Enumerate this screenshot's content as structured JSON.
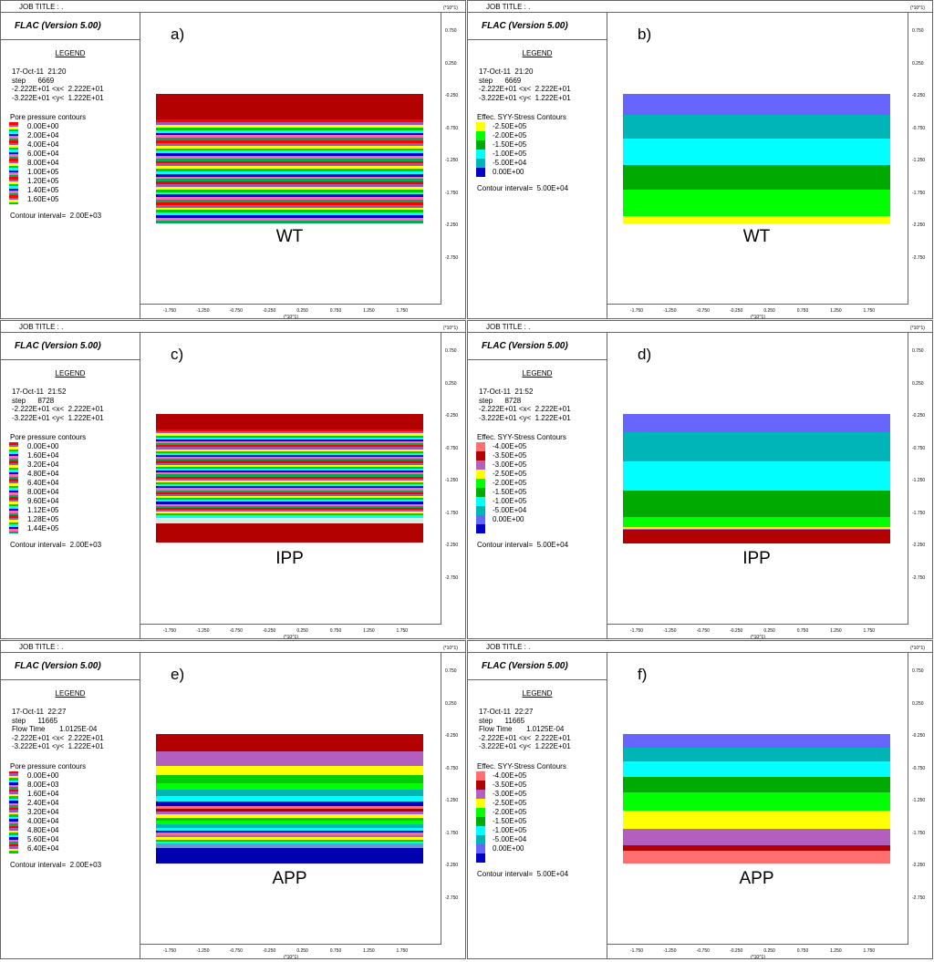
{
  "common": {
    "job_title": "JOB TITLE : .",
    "app_name": "FLAC (Version 5.00)",
    "legend_title": "LEGEND",
    "y_unit": "(*10^1)",
    "x_unit": "(*10^1)",
    "y_ticks": [
      "0.750",
      "0.250",
      "-0.250",
      "-0.750",
      "-1.250",
      "-1.750",
      "-2.250",
      "-2.750"
    ],
    "x_ticks": [
      "-1.750",
      "-1.250",
      "-0.750",
      "-0.250",
      "0.250",
      "0.750",
      "1.250",
      "1.750"
    ]
  },
  "panels": [
    {
      "id": "a",
      "label": "a)",
      "case": "WT",
      "date_time": "17-Oct-11  21:20",
      "step": "step      6669",
      "flow_time": "",
      "x_range": "-2.222E+01 <x<  2.222E+01",
      "y_range": "-3.222E+01 <y<  1.222E+01",
      "contour_title": "Pore pressure contours",
      "contour_type": "pore",
      "contour_labels": [
        "0.00E+00",
        "2.00E+04",
        "4.00E+04",
        "6.00E+04",
        "8.00E+04",
        "1.00E+05",
        "1.20E+05",
        "1.40E+05",
        "1.60E+05"
      ],
      "contour_interval": "Contour interval=  2.00E+03",
      "bands": [
        {
          "color": "#b30000",
          "weight": 10
        },
        {
          "color": "#ff0000",
          "weight": 1
        },
        {
          "color": "#9b59b6",
          "weight": 1
        },
        {
          "color": "#ffff00",
          "weight": 1
        },
        {
          "color": "#00cc00",
          "weight": 1
        },
        {
          "color": "#00ffff",
          "weight": 1
        },
        {
          "color": "#0000cc",
          "weight": 1
        },
        {
          "color": "#ff69b4",
          "weight": 1
        },
        {
          "color": "#00aa55",
          "weight": 1
        },
        {
          "color": "#ff0000",
          "weight": 1
        },
        {
          "color": "#9b59b6",
          "weight": 1
        },
        {
          "color": "#ffff00",
          "weight": 1
        },
        {
          "color": "#00cc00",
          "weight": 1
        },
        {
          "color": "#00ffff",
          "weight": 1
        },
        {
          "color": "#0000cc",
          "weight": 1
        },
        {
          "color": "#ff69b4",
          "weight": 1
        },
        {
          "color": "#00aa55",
          "weight": 1
        },
        {
          "color": "#ff0000",
          "weight": 1
        },
        {
          "color": "#9b59b6",
          "weight": 1
        },
        {
          "color": "#ffff00",
          "weight": 1
        },
        {
          "color": "#00cc00",
          "weight": 1
        },
        {
          "color": "#00ffff",
          "weight": 1
        },
        {
          "color": "#0000cc",
          "weight": 1
        },
        {
          "color": "#ff69b4",
          "weight": 1
        },
        {
          "color": "#00aa55",
          "weight": 1
        },
        {
          "color": "#ff0000",
          "weight": 1
        },
        {
          "color": "#9b59b6",
          "weight": 1
        },
        {
          "color": "#ffff00",
          "weight": 1
        },
        {
          "color": "#00cc00",
          "weight": 1
        },
        {
          "color": "#00ffff",
          "weight": 1
        },
        {
          "color": "#0000cc",
          "weight": 1
        },
        {
          "color": "#ff69b4",
          "weight": 1
        },
        {
          "color": "#00aa55",
          "weight": 1
        },
        {
          "color": "#ff0000",
          "weight": 1
        },
        {
          "color": "#9b59b6",
          "weight": 1
        },
        {
          "color": "#ffff00",
          "weight": 1
        },
        {
          "color": "#00cc00",
          "weight": 1
        },
        {
          "color": "#00ffff",
          "weight": 1
        },
        {
          "color": "#0000cc",
          "weight": 1
        },
        {
          "color": "#ff69b4",
          "weight": 1
        },
        {
          "color": "#00aa55",
          "weight": 1
        }
      ]
    },
    {
      "id": "b",
      "label": "b)",
      "case": "WT",
      "date_time": "17-Oct-11  21:20",
      "step": "step      6669",
      "flow_time": "",
      "x_range": "-2.222E+01 <x<  2.222E+01",
      "y_range": "-3.222E+01 <y<  1.222E+01",
      "contour_title": "Effec. SYY-Stress Contours",
      "contour_type": "stress",
      "contour_labels": [
        "-2.50E+05",
        "-2.00E+05",
        "-1.50E+05",
        "-1.00E+05",
        "-5.00E+04",
        "0.00E+00"
      ],
      "contour_colors": [
        "#ffff00",
        "#00ff00",
        "#00aa00",
        "#00ffff",
        "#00b5b5",
        "#0000c8"
      ],
      "contour_interval": "Contour interval=  5.00E+04",
      "bands": [
        {
          "color": "#6666ff",
          "weight": 11
        },
        {
          "color": "#00b5b5",
          "weight": 13
        },
        {
          "color": "#00ffff",
          "weight": 14
        },
        {
          "color": "#00aa00",
          "weight": 13
        },
        {
          "color": "#00ff00",
          "weight": 14
        },
        {
          "color": "#ffff00",
          "weight": 4
        }
      ]
    },
    {
      "id": "c",
      "label": "c)",
      "case": "IPP",
      "date_time": "17-Oct-11  21:52",
      "step": "step      8728",
      "flow_time": "",
      "x_range": "-2.222E+01 <x<  2.222E+01",
      "y_range": "-3.222E+01 <y<  1.222E+01",
      "contour_title": "Pore pressure contours",
      "contour_type": "pore",
      "contour_labels": [
        "0.00E+00",
        "1.60E+04",
        "3.20E+04",
        "4.80E+04",
        "6.40E+04",
        "8.00E+04",
        "9.60E+04",
        "1.12E+05",
        "1.28E+05",
        "1.44E+05"
      ],
      "contour_interval": "Contour interval=  2.00E+03",
      "bands": [
        {
          "color": "#b30000",
          "weight": 8
        },
        {
          "color": "#ff0000",
          "weight": 1
        },
        {
          "color": "#9b59b6",
          "weight": 1
        },
        {
          "color": "#ffff00",
          "weight": 1
        },
        {
          "color": "#00cc00",
          "weight": 1
        },
        {
          "color": "#00ffff",
          "weight": 1
        },
        {
          "color": "#0000cc",
          "weight": 1
        },
        {
          "color": "#ff69b4",
          "weight": 1
        },
        {
          "color": "#00aa55",
          "weight": 1
        },
        {
          "color": "#ff0000",
          "weight": 1
        },
        {
          "color": "#9b59b6",
          "weight": 1
        },
        {
          "color": "#ffff00",
          "weight": 1
        },
        {
          "color": "#00cc00",
          "weight": 1
        },
        {
          "color": "#00ffff",
          "weight": 1
        },
        {
          "color": "#0000cc",
          "weight": 1
        },
        {
          "color": "#ff69b4",
          "weight": 1
        },
        {
          "color": "#00aa55",
          "weight": 1
        },
        {
          "color": "#ff0000",
          "weight": 1
        },
        {
          "color": "#9b59b6",
          "weight": 1
        },
        {
          "color": "#ffff00",
          "weight": 1
        },
        {
          "color": "#00cc00",
          "weight": 1
        },
        {
          "color": "#00ffff",
          "weight": 1
        },
        {
          "color": "#0000cc",
          "weight": 1
        },
        {
          "color": "#ff69b4",
          "weight": 1
        },
        {
          "color": "#00aa55",
          "weight": 1
        },
        {
          "color": "#ff0000",
          "weight": 1
        },
        {
          "color": "#9b59b6",
          "weight": 1
        },
        {
          "color": "#ffff00",
          "weight": 1
        },
        {
          "color": "#00cc00",
          "weight": 1
        },
        {
          "color": "#00ffff",
          "weight": 1
        },
        {
          "color": "#0000cc",
          "weight": 1
        },
        {
          "color": "#ff69b4",
          "weight": 1
        },
        {
          "color": "#00aa55",
          "weight": 1
        },
        {
          "color": "#ff0000",
          "weight": 1
        },
        {
          "color": "#9b59b6",
          "weight": 1
        },
        {
          "color": "#ffff00",
          "weight": 1
        },
        {
          "color": "#00cc00",
          "weight": 1
        },
        {
          "color": "#00ffff",
          "weight": 1
        },
        {
          "color": "#0000cc",
          "weight": 1
        },
        {
          "color": "#ff69b4",
          "weight": 1
        },
        {
          "color": "#00aa55",
          "weight": 1
        },
        {
          "color": "#ff0000",
          "weight": 1
        },
        {
          "color": "#9b59b6",
          "weight": 1
        },
        {
          "color": "#ffff00",
          "weight": 1
        },
        {
          "color": "#00cc00",
          "weight": 1
        },
        {
          "color": "#00ffff",
          "weight": 1
        },
        {
          "color": "#cfeee0",
          "weight": 3
        },
        {
          "color": "#b30000",
          "weight": 10
        }
      ]
    },
    {
      "id": "d",
      "label": "d)",
      "case": "IPP",
      "date_time": "17-Oct-11  21:52",
      "step": "step      8728",
      "flow_time": "",
      "x_range": "-2.222E+01 <x<  2.222E+01",
      "y_range": "-3.222E+01 <y<  1.222E+01",
      "contour_title": "Effec. SYY-Stress Contours",
      "contour_type": "stress",
      "contour_labels": [
        "-4.00E+05",
        "-3.50E+05",
        "-3.00E+05",
        "-2.50E+05",
        "-2.00E+05",
        "-1.50E+05",
        "-1.00E+05",
        "-5.00E+04",
        "0.00E+00"
      ],
      "contour_colors": [
        "#ff6f6f",
        "#b30000",
        "#b35fc0",
        "#ffff00",
        "#00ff00",
        "#00aa00",
        "#00ffff",
        "#00b5b5",
        "#6666ff",
        "#0000c8"
      ],
      "contour_interval": "Contour interval=  5.00E+04",
      "bands": [
        {
          "color": "#6666ff",
          "weight": 15
        },
        {
          "color": "#00b5b5",
          "weight": 24
        },
        {
          "color": "#00ffff",
          "weight": 24
        },
        {
          "color": "#00aa00",
          "weight": 22
        },
        {
          "color": "#00ff00",
          "weight": 8
        },
        {
          "color": "#ffff00",
          "weight": 1.5
        },
        {
          "color": "#b35fc0",
          "weight": 1
        },
        {
          "color": "#b30000",
          "weight": 11
        }
      ]
    },
    {
      "id": "e",
      "label": "e)",
      "case": "APP",
      "date_time": "17-Oct-11  22:27",
      "step": "step      11665",
      "flow_time": "Flow Time       1.0125E-04",
      "x_range": "-2.222E+01 <x<  2.222E+01",
      "y_range": "-3.222E+01 <y<  1.222E+01",
      "contour_title": "Pore pressure contours",
      "contour_type": "pore",
      "contour_labels": [
        "0.00E+00",
        "8.00E+03",
        "1.60E+04",
        "2.40E+04",
        "3.20E+04",
        "4.00E+04",
        "4.80E+04",
        "5.60E+04",
        "6.40E+04"
      ],
      "contour_interval": "Contour interval=  2.00E+03",
      "bands": [
        {
          "color": "#b30000",
          "weight": 16
        },
        {
          "color": "#b35fc0",
          "weight": 13
        },
        {
          "color": "#ffff00",
          "weight": 9
        },
        {
          "color": "#00cc00",
          "weight": 7
        },
        {
          "color": "#00ff00",
          "weight": 6
        },
        {
          "color": "#00b5b5",
          "weight": 6
        },
        {
          "color": "#00ffff",
          "weight": 5
        },
        {
          "color": "#0000c8",
          "weight": 4
        },
        {
          "color": "#ff6f6f",
          "weight": 3
        },
        {
          "color": "#b30000",
          "weight": 2
        },
        {
          "color": "#b35fc0",
          "weight": 3
        },
        {
          "color": "#ffff00",
          "weight": 3
        },
        {
          "color": "#00cc00",
          "weight": 3
        },
        {
          "color": "#00ff00",
          "weight": 3
        },
        {
          "color": "#00b5b5",
          "weight": 3
        },
        {
          "color": "#00ffff",
          "weight": 3
        },
        {
          "color": "#0000c8",
          "weight": 2
        },
        {
          "color": "#ff6f6f",
          "weight": 2
        },
        {
          "color": "#b35fc0",
          "weight": 2
        },
        {
          "color": "#ffff00",
          "weight": 2
        },
        {
          "color": "#00cc00",
          "weight": 2
        },
        {
          "color": "#00ffff",
          "weight": 2
        },
        {
          "color": "#6699cc",
          "weight": 4
        },
        {
          "color": "#0000b0",
          "weight": 14
        }
      ]
    },
    {
      "id": "f",
      "label": "f)",
      "case": "APP",
      "date_time": "17-Oct-11  22:27",
      "step": "step      11665",
      "flow_time": "Flow Time       1.0125E-04",
      "x_range": "-2.222E+01 <x<  2.222E+01",
      "y_range": "-3.222E+01 <y<  1.222E+01",
      "contour_title": "Effec. SYY-Stress Contours",
      "contour_type": "stress",
      "contour_labels": [
        "-4.00E+05",
        "-3.50E+05",
        "-3.00E+05",
        "-2.50E+05",
        "-2.00E+05",
        "-1.50E+05",
        "-1.00E+05",
        "-5.00E+04",
        "0.00E+00"
      ],
      "contour_colors": [
        "#ff6f6f",
        "#b30000",
        "#b35fc0",
        "#ffff00",
        "#00ff00",
        "#00aa00",
        "#00ffff",
        "#00b5b5",
        "#6666ff",
        "#0000c8"
      ],
      "contour_interval": "Contour interval=  5.00E+04",
      "bands": [
        {
          "color": "#6666ff",
          "weight": 15
        },
        {
          "color": "#00b5b5",
          "weight": 15
        },
        {
          "color": "#00ffff",
          "weight": 17
        },
        {
          "color": "#00aa00",
          "weight": 17
        },
        {
          "color": "#00ff00",
          "weight": 19
        },
        {
          "color": "#ffff00",
          "weight": 20
        },
        {
          "color": "#b35fc0",
          "weight": 18
        },
        {
          "color": "#b30000",
          "weight": 6
        },
        {
          "color": "#ff6f6f",
          "weight": 14
        }
      ]
    }
  ]
}
